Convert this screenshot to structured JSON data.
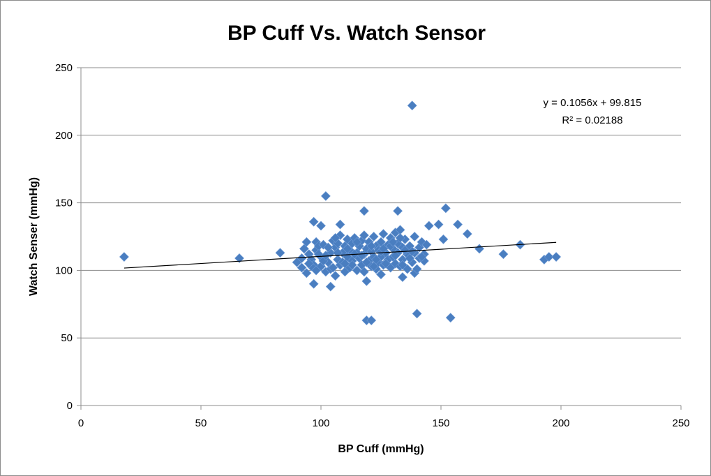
{
  "chart_data": {
    "type": "scatter",
    "title": "BP Cuff Vs. Watch Sensor",
    "xlabel": "BP Cuff (mmHg)",
    "ylabel": "Watch Senser (mmHg)",
    "xlim": [
      0,
      250
    ],
    "ylim": [
      0,
      250
    ],
    "xticks": [
      "0",
      "50",
      "100",
      "150",
      "200",
      "250"
    ],
    "yticks": [
      "0",
      "50",
      "100",
      "150",
      "200",
      "250"
    ],
    "grid": "horizontal",
    "marker": "diamond",
    "color": "#4a7ec0",
    "trendline": {
      "type": "linear",
      "slope": 0.1056,
      "intercept": 99.815,
      "x_range": [
        18,
        198
      ],
      "equation": "y = 0.1056x + 99.815",
      "r_squared": "R² = 0.02188"
    },
    "points": [
      [
        18,
        110
      ],
      [
        66,
        109
      ],
      [
        83,
        113
      ],
      [
        138,
        222
      ],
      [
        102,
        155
      ],
      [
        118,
        144
      ],
      [
        132,
        144
      ],
      [
        152,
        146
      ],
      [
        97,
        136
      ],
      [
        100,
        133
      ],
      [
        108,
        134
      ],
      [
        145,
        133
      ],
      [
        149,
        134
      ],
      [
        157,
        134
      ],
      [
        161,
        127
      ],
      [
        151,
        123
      ],
      [
        166,
        116
      ],
      [
        176,
        112
      ],
      [
        183,
        119
      ],
      [
        193,
        108
      ],
      [
        195,
        110
      ],
      [
        198,
        110
      ],
      [
        119,
        63
      ],
      [
        121,
        63
      ],
      [
        140,
        68
      ],
      [
        154,
        65
      ],
      [
        97,
        90
      ],
      [
        104,
        88
      ],
      [
        119,
        92
      ],
      [
        125,
        97
      ],
      [
        134,
        95
      ],
      [
        139,
        98
      ],
      [
        90,
        106
      ],
      [
        92,
        102
      ],
      [
        93,
        116
      ],
      [
        94,
        121
      ],
      [
        95,
        112
      ],
      [
        96,
        108
      ],
      [
        97,
        104
      ],
      [
        98,
        115
      ],
      [
        98,
        121
      ],
      [
        99,
        118
      ],
      [
        100,
        110
      ],
      [
        100,
        103
      ],
      [
        101,
        119
      ],
      [
        102,
        99
      ],
      [
        103,
        106
      ],
      [
        104,
        113
      ],
      [
        104,
        101
      ],
      [
        105,
        122
      ],
      [
        106,
        117
      ],
      [
        106,
        96
      ],
      [
        107,
        108
      ],
      [
        107,
        120
      ],
      [
        108,
        104
      ],
      [
        108,
        126
      ],
      [
        109,
        113
      ],
      [
        110,
        99
      ],
      [
        110,
        118
      ],
      [
        111,
        110
      ],
      [
        111,
        123
      ],
      [
        112,
        102
      ],
      [
        112,
        115
      ],
      [
        113,
        107
      ],
      [
        113,
        120
      ],
      [
        114,
        124
      ],
      [
        115,
        100
      ],
      [
        115,
        113
      ],
      [
        116,
        109
      ],
      [
        116,
        118
      ],
      [
        117,
        104
      ],
      [
        117,
        122
      ],
      [
        118,
        112
      ],
      [
        118,
        99
      ],
      [
        119,
        116
      ],
      [
        120,
        107
      ],
      [
        120,
        121
      ],
      [
        121,
        103
      ],
      [
        121,
        114
      ],
      [
        122,
        110
      ],
      [
        122,
        125
      ],
      [
        123,
        118
      ],
      [
        123,
        101
      ],
      [
        124,
        106
      ],
      [
        124,
        115
      ],
      [
        125,
        121
      ],
      [
        125,
        110
      ],
      [
        126,
        104
      ],
      [
        126,
        127
      ],
      [
        127,
        113
      ],
      [
        128,
        119
      ],
      [
        128,
        108
      ],
      [
        129,
        102
      ],
      [
        129,
        124
      ],
      [
        130,
        116
      ],
      [
        130,
        110
      ],
      [
        131,
        128
      ],
      [
        131,
        105
      ],
      [
        132,
        120
      ],
      [
        132,
        113
      ],
      [
        133,
        130
      ],
      [
        133,
        103
      ],
      [
        134,
        117
      ],
      [
        134,
        108
      ],
      [
        135,
        123
      ],
      [
        136,
        112
      ],
      [
        136,
        101
      ],
      [
        137,
        118
      ],
      [
        138,
        106
      ],
      [
        139,
        125
      ],
      [
        139,
        113
      ],
      [
        140,
        101
      ],
      [
        141,
        117
      ],
      [
        141,
        109
      ],
      [
        142,
        121
      ],
      [
        143,
        112
      ],
      [
        143,
        107
      ],
      [
        144,
        119
      ],
      [
        94,
        98
      ],
      [
        96,
        103
      ],
      [
        99,
        112
      ],
      [
        101,
        107
      ],
      [
        103,
        117
      ],
      [
        105,
        102
      ],
      [
        107,
        113
      ],
      [
        109,
        106
      ],
      [
        111,
        116
      ],
      [
        113,
        104
      ],
      [
        115,
        121
      ],
      [
        117,
        111
      ],
      [
        119,
        106
      ],
      [
        121,
        118
      ],
      [
        123,
        108
      ],
      [
        125,
        114
      ],
      [
        127,
        105
      ],
      [
        129,
        118
      ],
      [
        131,
        111
      ],
      [
        133,
        124
      ],
      [
        135,
        115
      ],
      [
        137,
        109
      ],
      [
        92,
        109
      ],
      [
        95,
        105
      ],
      [
        98,
        100
      ],
      [
        102,
        111
      ],
      [
        106,
        124
      ],
      [
        110,
        105
      ],
      [
        114,
        112
      ],
      [
        118,
        126
      ],
      [
        122,
        103
      ],
      [
        126,
        116
      ],
      [
        130,
        121
      ],
      [
        134,
        104
      ],
      [
        138,
        114
      ],
      [
        142,
        110
      ]
    ]
  }
}
